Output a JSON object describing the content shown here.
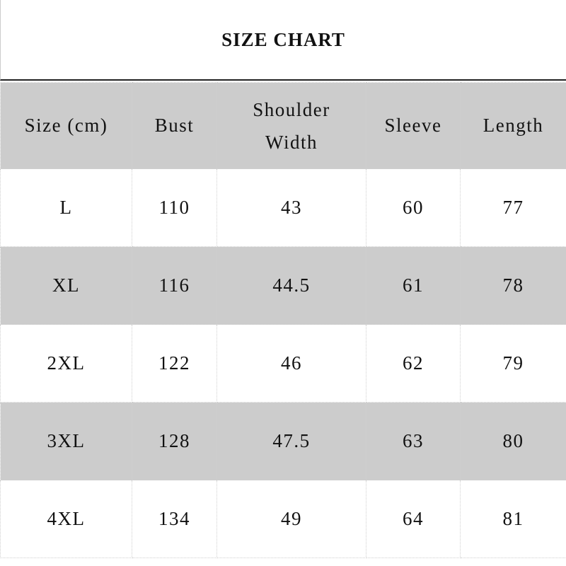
{
  "title": "SIZE CHART",
  "headers": [
    "Size (cm)",
    "Bust",
    "Shoulder Width",
    "Sleeve",
    "Length"
  ],
  "header_lines": {
    "shoulder_1": "Shoulder",
    "shoulder_2": "Width"
  },
  "rows": [
    [
      "L",
      "110",
      "43",
      "60",
      "77"
    ],
    [
      "XL",
      "116",
      "44.5",
      "61",
      "78"
    ],
    [
      "2XL",
      "122",
      "46",
      "62",
      "79"
    ],
    [
      "3XL",
      "128",
      "47.5",
      "63",
      "80"
    ],
    [
      "4XL",
      "134",
      "49",
      "64",
      "81"
    ]
  ],
  "colors": {
    "header_bg": "#cccccc",
    "alt_row_bg": "#cccccc",
    "title_rule": "#222222"
  }
}
